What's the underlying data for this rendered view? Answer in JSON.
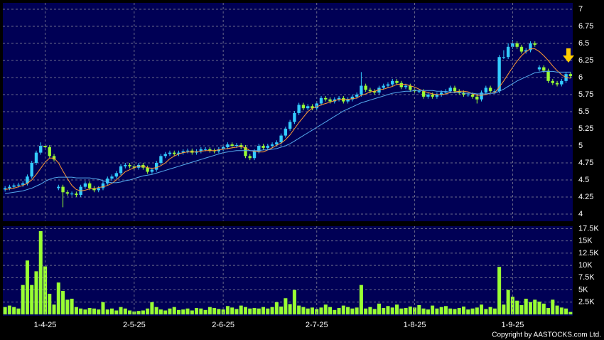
{
  "chart_data": [
    {
      "type": "candlestick",
      "up_color": "#33ccff",
      "down_color": "#99ff33",
      "grid": true,
      "ylim": [
        4,
        7
      ],
      "yticks": [
        4,
        4.25,
        4.5,
        4.75,
        5,
        5.25,
        5.5,
        5.75,
        6,
        6.25,
        6.5,
        6.75,
        7
      ],
      "xlim": [
        -0.5,
        127.5
      ],
      "open": [
        4.36,
        4.38,
        4.4,
        4.42,
        4.43,
        4.45,
        4.55,
        4.75,
        4.9,
        5.0,
        4.98,
        4.85,
        4.38,
        4.4,
        4.32,
        4.3,
        4.3,
        4.28,
        4.4,
        4.45,
        4.38,
        4.35,
        4.38,
        4.45,
        4.52,
        4.55,
        4.6,
        4.7,
        4.72,
        4.7,
        4.68,
        4.72,
        4.68,
        4.62,
        4.65,
        4.75,
        4.85,
        4.88,
        4.9,
        4.88,
        4.9,
        4.92,
        4.93,
        4.9,
        4.92,
        4.95,
        4.95,
        4.93,
        4.92,
        4.95,
        4.98,
        5.02,
        5.0,
        5.01,
        4.98,
        4.85,
        4.82,
        4.92,
        5.0,
        4.97,
        5.0,
        5.02,
        5.05,
        5.15,
        5.25,
        5.35,
        5.48,
        5.6,
        5.55,
        5.58,
        5.55,
        5.62,
        5.7,
        5.68,
        5.65,
        5.68,
        5.7,
        5.65,
        5.68,
        5.72,
        5.75,
        5.88,
        5.82,
        5.8,
        5.78,
        5.85,
        5.88,
        5.9,
        5.95,
        5.92,
        5.86,
        5.88,
        5.82,
        5.8,
        5.8,
        5.72,
        5.75,
        5.72,
        5.75,
        5.78,
        5.8,
        5.85,
        5.8,
        5.78,
        5.75,
        5.75,
        5.72,
        5.68,
        5.78,
        5.85,
        5.8,
        5.8,
        6.3,
        6.3,
        6.45,
        6.5,
        6.45,
        6.38,
        6.4,
        6.5,
        6.12,
        6.15,
        6.1,
        5.95,
        5.92,
        5.9,
        5.95,
        6.05
      ],
      "high": [
        4.41,
        4.43,
        4.45,
        4.46,
        4.48,
        4.58,
        4.78,
        4.93,
        5.05,
        5.03,
        5.01,
        4.88,
        4.43,
        4.43,
        4.35,
        4.33,
        4.33,
        4.43,
        4.48,
        4.48,
        4.41,
        4.41,
        4.48,
        4.55,
        4.58,
        4.63,
        4.73,
        4.75,
        4.75,
        4.73,
        4.75,
        4.75,
        4.71,
        4.68,
        4.78,
        4.88,
        4.91,
        4.93,
        4.93,
        4.93,
        4.95,
        4.96,
        4.96,
        4.95,
        4.98,
        4.98,
        4.98,
        4.96,
        4.98,
        5.01,
        5.05,
        5.05,
        5.04,
        5.04,
        5.01,
        4.88,
        4.95,
        5.03,
        5.03,
        5.03,
        5.05,
        5.08,
        5.18,
        5.28,
        5.38,
        5.51,
        5.63,
        5.63,
        5.61,
        5.61,
        5.65,
        5.73,
        5.73,
        5.71,
        5.71,
        5.73,
        5.73,
        5.71,
        5.75,
        5.78,
        6.08,
        5.91,
        5.85,
        5.83,
        5.88,
        5.91,
        5.93,
        5.98,
        5.98,
        5.95,
        5.91,
        5.91,
        5.85,
        5.83,
        5.83,
        5.78,
        5.78,
        5.78,
        5.81,
        5.83,
        5.88,
        5.88,
        5.83,
        5.81,
        5.78,
        5.78,
        5.75,
        5.81,
        5.88,
        5.88,
        5.83,
        6.33,
        6.4,
        6.5,
        6.55,
        6.53,
        6.48,
        6.43,
        6.53,
        6.53,
        6.18,
        6.18,
        6.13,
        5.98,
        5.95,
        5.98,
        6.08,
        6.08
      ],
      "low": [
        4.33,
        4.35,
        4.37,
        4.39,
        4.4,
        4.42,
        4.52,
        4.72,
        4.87,
        4.95,
        4.82,
        4.77,
        4.35,
        4.1,
        4.27,
        4.27,
        4.25,
        4.25,
        4.37,
        4.35,
        4.32,
        4.32,
        4.35,
        4.42,
        4.49,
        4.52,
        4.57,
        4.67,
        4.67,
        4.65,
        4.65,
        4.65,
        4.59,
        4.59,
        4.62,
        4.72,
        4.82,
        4.85,
        4.85,
        4.85,
        4.87,
        4.89,
        4.87,
        4.87,
        4.89,
        4.92,
        4.9,
        4.89,
        4.89,
        4.92,
        4.95,
        4.97,
        4.97,
        4.95,
        4.82,
        4.79,
        4.79,
        4.89,
        4.94,
        4.94,
        4.97,
        4.99,
        5.02,
        5.12,
        5.22,
        5.32,
        5.45,
        5.52,
        5.52,
        5.52,
        5.52,
        5.59,
        5.65,
        5.62,
        5.62,
        5.65,
        5.62,
        5.62,
        5.65,
        5.69,
        5.72,
        5.79,
        5.77,
        5.75,
        5.75,
        5.82,
        5.85,
        5.87,
        5.89,
        5.83,
        5.83,
        5.79,
        5.77,
        5.77,
        5.69,
        5.69,
        5.69,
        5.69,
        5.72,
        5.75,
        5.77,
        5.77,
        5.75,
        5.72,
        5.72,
        5.69,
        5.62,
        5.65,
        5.75,
        5.77,
        5.77,
        5.77,
        6.27,
        6.27,
        6.42,
        6.42,
        6.35,
        6.35,
        6.37,
        6.45,
        6.09,
        6.07,
        5.92,
        5.89,
        5.87,
        5.87,
        5.92,
        5.99
      ],
      "close": [
        4.38,
        4.4,
        4.42,
        4.43,
        4.45,
        4.55,
        4.75,
        4.9,
        5.0,
        4.98,
        4.85,
        4.8,
        4.4,
        4.32,
        4.3,
        4.3,
        4.28,
        4.4,
        4.45,
        4.38,
        4.35,
        4.38,
        4.45,
        4.52,
        4.55,
        4.6,
        4.7,
        4.72,
        4.7,
        4.68,
        4.72,
        4.68,
        4.62,
        4.65,
        4.75,
        4.85,
        4.88,
        4.9,
        4.88,
        4.9,
        4.92,
        4.93,
        4.9,
        4.92,
        4.95,
        4.95,
        4.93,
        4.92,
        4.95,
        4.98,
        5.02,
        5.0,
        5.01,
        4.98,
        4.85,
        4.82,
        4.92,
        5.0,
        4.97,
        5.0,
        5.02,
        5.05,
        5.15,
        5.25,
        5.35,
        5.48,
        5.6,
        5.55,
        5.58,
        5.55,
        5.62,
        5.7,
        5.68,
        5.65,
        5.68,
        5.7,
        5.65,
        5.68,
        5.72,
        5.75,
        5.88,
        5.82,
        5.8,
        5.78,
        5.85,
        5.88,
        5.9,
        5.95,
        5.92,
        5.86,
        5.88,
        5.82,
        5.8,
        5.8,
        5.72,
        5.75,
        5.72,
        5.75,
        5.78,
        5.8,
        5.85,
        5.8,
        5.78,
        5.75,
        5.75,
        5.72,
        5.68,
        5.78,
        5.85,
        5.8,
        5.8,
        6.3,
        6.3,
        6.45,
        6.5,
        6.45,
        6.38,
        6.4,
        6.5,
        6.48,
        6.15,
        6.1,
        5.95,
        5.92,
        5.9,
        5.95,
        6.05,
        6.02
      ],
      "lines": [
        {
          "color": "#ff9933",
          "values": [
            4.36,
            4.37,
            4.38,
            4.4,
            4.42,
            4.45,
            4.5,
            4.58,
            4.67,
            4.76,
            4.82,
            4.82,
            4.75,
            4.63,
            4.52,
            4.42,
            4.36,
            4.34,
            4.35,
            4.37,
            4.37,
            4.39,
            4.4,
            4.42,
            4.45,
            4.5,
            4.56,
            4.62,
            4.65,
            4.68,
            4.7,
            4.7,
            4.68,
            4.67,
            4.68,
            4.71,
            4.75,
            4.81,
            4.85,
            4.88,
            4.9,
            4.91,
            4.91,
            4.91,
            4.92,
            4.93,
            4.93,
            4.93,
            4.94,
            4.95,
            4.96,
            4.97,
            4.98,
            4.99,
            4.97,
            4.93,
            4.92,
            4.91,
            4.91,
            4.94,
            4.97,
            5.01,
            5.04,
            5.09,
            5.16,
            5.25,
            5.34,
            5.42,
            5.5,
            5.55,
            5.57,
            5.6,
            5.62,
            5.64,
            5.66,
            5.68,
            5.68,
            5.68,
            5.69,
            5.7,
            5.74,
            5.76,
            5.79,
            5.8,
            5.82,
            5.83,
            5.85,
            5.87,
            5.9,
            5.9,
            5.9,
            5.88,
            5.86,
            5.83,
            5.8,
            5.78,
            5.76,
            5.75,
            5.75,
            5.76,
            5.78,
            5.79,
            5.8,
            5.8,
            5.79,
            5.76,
            5.74,
            5.74,
            5.75,
            5.77,
            5.78,
            5.86,
            5.95,
            6.05,
            6.15,
            6.24,
            6.32,
            6.38,
            6.42,
            6.42,
            6.38,
            6.32,
            6.25,
            6.17,
            6.1,
            6.04,
            6.0,
            5.99
          ]
        },
        {
          "color": "#55aaee",
          "values": [
            4.3,
            4.31,
            4.32,
            4.33,
            4.34,
            4.36,
            4.38,
            4.41,
            4.44,
            4.48,
            4.51,
            4.53,
            4.54,
            4.54,
            4.54,
            4.54,
            4.53,
            4.53,
            4.53,
            4.53,
            4.52,
            4.51,
            4.49,
            4.47,
            4.46,
            4.46,
            4.47,
            4.49,
            4.5,
            4.52,
            4.54,
            4.56,
            4.57,
            4.58,
            4.6,
            4.62,
            4.64,
            4.66,
            4.68,
            4.7,
            4.72,
            4.74,
            4.76,
            4.78,
            4.8,
            4.82,
            4.84,
            4.86,
            4.88,
            4.9,
            4.91,
            4.92,
            4.93,
            4.93,
            4.93,
            4.93,
            4.93,
            4.93,
            4.94,
            4.94,
            4.95,
            4.96,
            4.98,
            5.0,
            5.03,
            5.07,
            5.11,
            5.15,
            5.19,
            5.23,
            5.27,
            5.31,
            5.35,
            5.39,
            5.43,
            5.47,
            5.51,
            5.54,
            5.57,
            5.6,
            5.63,
            5.65,
            5.67,
            5.69,
            5.71,
            5.73,
            5.75,
            5.77,
            5.78,
            5.79,
            5.8,
            5.8,
            5.81,
            5.81,
            5.81,
            5.81,
            5.81,
            5.8,
            5.8,
            5.79,
            5.79,
            5.78,
            5.78,
            5.77,
            5.77,
            5.77,
            5.76,
            5.76,
            5.76,
            5.77,
            5.77,
            5.8,
            5.83,
            5.87,
            5.91,
            5.95,
            5.98,
            6.01,
            6.04,
            6.07,
            6.08,
            6.09,
            6.09,
            6.09,
            6.08,
            6.08,
            6.08,
            6.08
          ]
        }
      ]
    },
    {
      "type": "bar",
      "color": "#99ff33",
      "grid": true,
      "ylim": [
        0,
        18000
      ],
      "xlim": [
        -0.5,
        127.5
      ],
      "yticks": [
        {
          "value": 2500,
          "label": "2.5K"
        },
        {
          "value": 5000,
          "label": "5K"
        },
        {
          "value": 7500,
          "label": "7.5K"
        },
        {
          "value": 10000,
          "label": "10K"
        },
        {
          "value": 12500,
          "label": "12.5K"
        },
        {
          "value": 15000,
          "label": "15K"
        },
        {
          "value": 17500,
          "label": "17.5K"
        }
      ],
      "xticks": [
        {
          "value": 9,
          "label": "1-4-25"
        },
        {
          "value": 29,
          "label": "2-5-25"
        },
        {
          "value": 49,
          "label": "2-6-25"
        },
        {
          "value": 70,
          "label": "2-7-25"
        },
        {
          "value": 92,
          "label": "1-8-25"
        },
        {
          "value": 114,
          "label": "1-9-25"
        }
      ],
      "values": [
        1500,
        1800,
        1500,
        1200,
        6000,
        11000,
        6000,
        8800,
        17000,
        9800,
        4200,
        2000,
        6500,
        4800,
        3000,
        3200,
        1500,
        1200,
        1000,
        1300,
        1200,
        1000,
        2500,
        1000,
        1200,
        800,
        1500,
        1200,
        800,
        600,
        700,
        800,
        1200,
        2500,
        1500,
        1000,
        800,
        1200,
        1500,
        900,
        1000,
        1200,
        800,
        1300,
        1200,
        900,
        1500,
        1300,
        1100,
        1000,
        1700,
        1400,
        1100,
        1800,
        1500,
        1200,
        1300,
        1200,
        1500,
        1200,
        1500,
        2500,
        1600,
        3300,
        2100,
        5000,
        1800,
        1500,
        1200,
        1400,
        1100,
        1400,
        2000,
        1500,
        900,
        1300,
        1800,
        1500,
        1200,
        1400,
        6000,
        1200,
        1500,
        1100,
        2200,
        1300,
        1700,
        1400,
        2000,
        1200,
        1300,
        1600,
        1400,
        1900,
        1200,
        1000,
        1800,
        1200,
        1500,
        1700,
        1200,
        1100,
        1300,
        1600,
        1000,
        1200,
        1400,
        2000,
        1100,
        1500,
        1200,
        9700,
        2000,
        5000,
        3600,
        2800,
        1900,
        3200,
        2500,
        3000,
        2600,
        2200,
        1300,
        3000,
        1800,
        1400,
        1200,
        500
      ]
    }
  ],
  "copyright": "Copyright by AASTOCKS.com Ltd."
}
